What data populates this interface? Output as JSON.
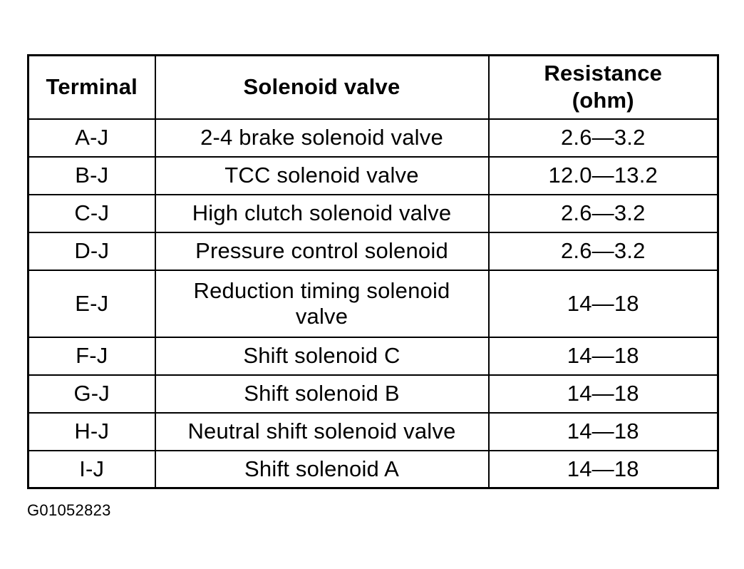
{
  "table": {
    "headers": {
      "terminal": "Terminal",
      "solenoid_valve": "Solenoid valve",
      "resistance_line1": "Resistance",
      "resistance_line2": "(ohm)"
    },
    "rows": [
      {
        "terminal": "A-J",
        "valve": "2-4 brake solenoid valve",
        "resistance": "2.6—3.2"
      },
      {
        "terminal": "B-J",
        "valve": "TCC solenoid valve",
        "resistance": "12.0—13.2"
      },
      {
        "terminal": "C-J",
        "valve": "High clutch solenoid valve",
        "resistance": "2.6—3.2"
      },
      {
        "terminal": "D-J",
        "valve": "Pressure control solenoid",
        "resistance": "2.6—3.2"
      },
      {
        "terminal": "E-J",
        "valve_line1": "Reduction timing solenoid",
        "valve_line2": "valve",
        "resistance": "14—18"
      },
      {
        "terminal": "F-J",
        "valve": "Shift solenoid C",
        "resistance": "14—18"
      },
      {
        "terminal": "G-J",
        "valve": "Shift solenoid B",
        "resistance": "14—18"
      },
      {
        "terminal": "H-J",
        "valve": "Neutral shift solenoid valve",
        "resistance": "14—18"
      },
      {
        "terminal": "I-J",
        "valve": "Shift solenoid A",
        "resistance": "14—18"
      }
    ]
  },
  "figure_id": "G01052823"
}
